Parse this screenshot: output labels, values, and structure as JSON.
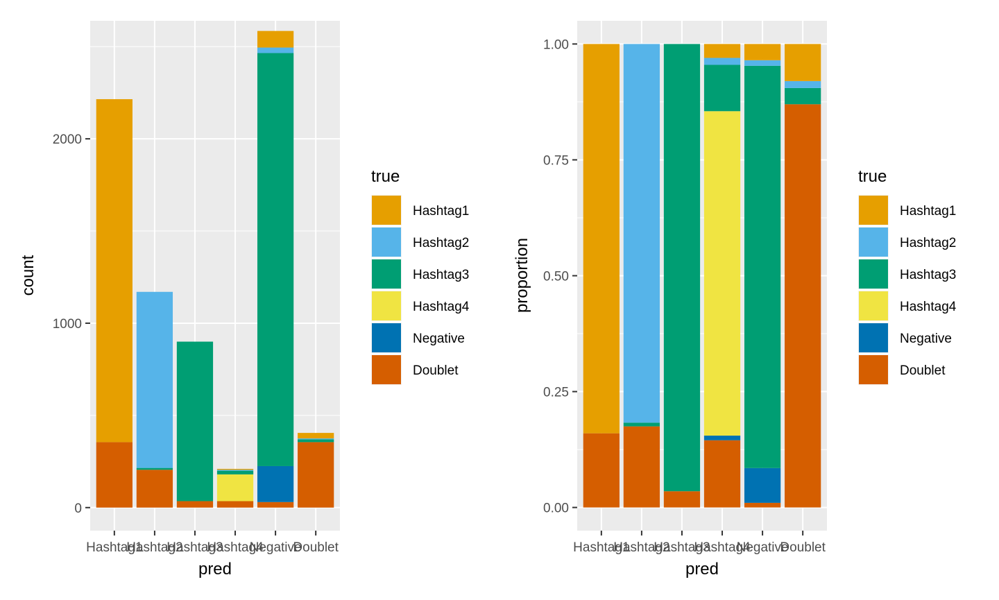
{
  "chart_data": [
    {
      "type": "bar",
      "stacked": true,
      "xlabel": "pred",
      "ylabel": "count",
      "ylim": [
        -125,
        2640
      ],
      "yticks": [
        0,
        1000,
        2000
      ],
      "ytick_labels": [
        "0",
        "1000",
        "2000"
      ],
      "categories": [
        "Hashtag1",
        "Hashtag2",
        "Hashtag3",
        "Hashtag4",
        "Negative",
        "Doublet"
      ],
      "legend_title": "true",
      "legend_position": "right",
      "series": [
        {
          "name": "Doublet",
          "color": "#D55E00",
          "values": [
            355,
            205,
            35,
            35,
            30,
            355
          ]
        },
        {
          "name": "Negative",
          "color": "#0072B2",
          "values": [
            0,
            0,
            0,
            0,
            195,
            0
          ]
        },
        {
          "name": "Hashtag4",
          "color": "#F0E442",
          "values": [
            0,
            0,
            0,
            145,
            0,
            0
          ]
        },
        {
          "name": "Hashtag3",
          "color": "#009E73",
          "values": [
            0,
            10,
            865,
            20,
            2240,
            15
          ]
        },
        {
          "name": "Hashtag2",
          "color": "#56B4E9",
          "values": [
            0,
            955,
            0,
            5,
            30,
            5
          ]
        },
        {
          "name": "Hashtag1",
          "color": "#E69F00",
          "values": [
            1860,
            0,
            0,
            5,
            90,
            30
          ]
        }
      ]
    },
    {
      "type": "bar",
      "stacked": true,
      "xlabel": "pred",
      "ylabel": "proportion",
      "ylim": [
        -0.05,
        1.05
      ],
      "yticks": [
        0,
        0.25,
        0.5,
        0.75,
        1
      ],
      "ytick_labels": [
        "0.00",
        "0.25",
        "0.50",
        "0.75",
        "1.00"
      ],
      "categories": [
        "Hashtag1",
        "Hashtag2",
        "Hashtag3",
        "Hashtag4",
        "Negative",
        "Doublet"
      ],
      "legend_title": "true",
      "legend_position": "right",
      "series": [
        {
          "name": "Doublet",
          "color": "#D55E00",
          "values": [
            0.16,
            0.175,
            0.035,
            0.145,
            0.01,
            0.87
          ]
        },
        {
          "name": "Negative",
          "color": "#0072B2",
          "values": [
            0,
            0,
            0,
            0.01,
            0.075,
            0
          ]
        },
        {
          "name": "Hashtag4",
          "color": "#F0E442",
          "values": [
            0,
            0,
            0,
            0.7,
            0,
            0
          ]
        },
        {
          "name": "Hashtag3",
          "color": "#009E73",
          "values": [
            0,
            0.008,
            0.965,
            0.1,
            0.868,
            0.035
          ]
        },
        {
          "name": "Hashtag2",
          "color": "#56B4E9",
          "values": [
            0,
            0.817,
            0,
            0.015,
            0.012,
            0.015
          ]
        },
        {
          "name": "Hashtag1",
          "color": "#E69F00",
          "values": [
            0.84,
            0,
            0,
            0.03,
            0.035,
            0.08
          ]
        }
      ]
    }
  ],
  "legend": {
    "title": "true",
    "items": [
      {
        "name": "Hashtag1",
        "color": "#E69F00"
      },
      {
        "name": "Hashtag2",
        "color": "#56B4E9"
      },
      {
        "name": "Hashtag3",
        "color": "#009E73"
      },
      {
        "name": "Hashtag4",
        "color": "#F0E442"
      },
      {
        "name": "Negative",
        "color": "#0072B2"
      },
      {
        "name": "Doublet",
        "color": "#D55E00"
      }
    ]
  }
}
